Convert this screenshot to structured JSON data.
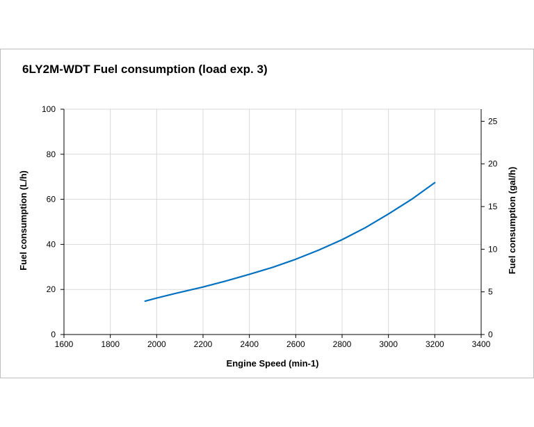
{
  "chart_data": {
    "type": "line",
    "title": "6LY2M-WDT Fuel consumption  (load exp. 3)",
    "xlabel": "Engine Speed (min-1)",
    "ylabel": "Fuel consumption (L/h)",
    "y2label": "Fuel consumption (gal/h)",
    "xlim": [
      1600,
      3400
    ],
    "ylim": [
      0,
      100
    ],
    "y2lim": [
      0,
      26.417
    ],
    "x_ticks": [
      "1600",
      "1800",
      "2000",
      "2200",
      "2400",
      "2600",
      "2800",
      "3000",
      "3200",
      "3400"
    ],
    "y_ticks": [
      "0",
      "20",
      "40",
      "60",
      "80",
      "100"
    ],
    "y2_ticks": [
      "0",
      "5",
      "10",
      "15",
      "20",
      "25"
    ],
    "grid": true,
    "line_color": "#0070c0",
    "series": [
      {
        "x": [
          1950,
          2000,
          2100,
          2200,
          2300,
          2400,
          2500,
          2600,
          2700,
          2800,
          2900,
          3000,
          3100,
          3200
        ],
        "y": [
          14.8,
          16.2,
          18.7,
          21.1,
          23.8,
          26.7,
          29.8,
          33.4,
          37.5,
          42.1,
          47.4,
          53.5,
          60.0,
          67.4
        ]
      }
    ]
  }
}
